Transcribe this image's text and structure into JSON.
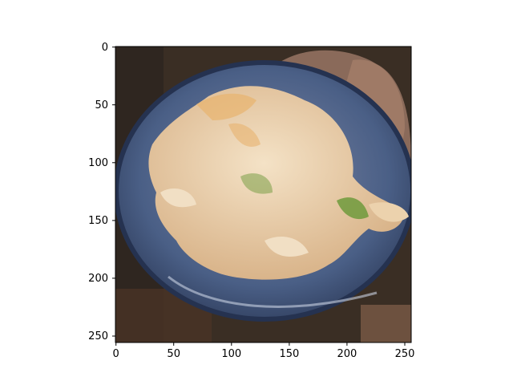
{
  "figure": {
    "image_content": "generated image: bowl of pasta with vegetables on a wooden table",
    "x_ticks": [
      {
        "value": 0,
        "label": "0"
      },
      {
        "value": 50,
        "label": "50"
      },
      {
        "value": 100,
        "label": "100"
      },
      {
        "value": 150,
        "label": "150"
      },
      {
        "value": 200,
        "label": "200"
      },
      {
        "value": 250,
        "label": "250"
      }
    ],
    "y_ticks": [
      {
        "value": 0,
        "label": "0"
      },
      {
        "value": 50,
        "label": "50"
      },
      {
        "value": 100,
        "label": "100"
      },
      {
        "value": 150,
        "label": "150"
      },
      {
        "value": 200,
        "label": "200"
      },
      {
        "value": 250,
        "label": "250"
      }
    ],
    "x_range": [
      -0.5,
      255.5
    ],
    "y_range": [
      255.5,
      -0.5
    ],
    "colors": {
      "background": "#3a2e24",
      "bowl": "#4a5f86",
      "pasta": "#ecd2ad",
      "pasta_warm": "#e8b36e",
      "green": "#6f9a3c",
      "wood": "#8a6a5a"
    }
  }
}
